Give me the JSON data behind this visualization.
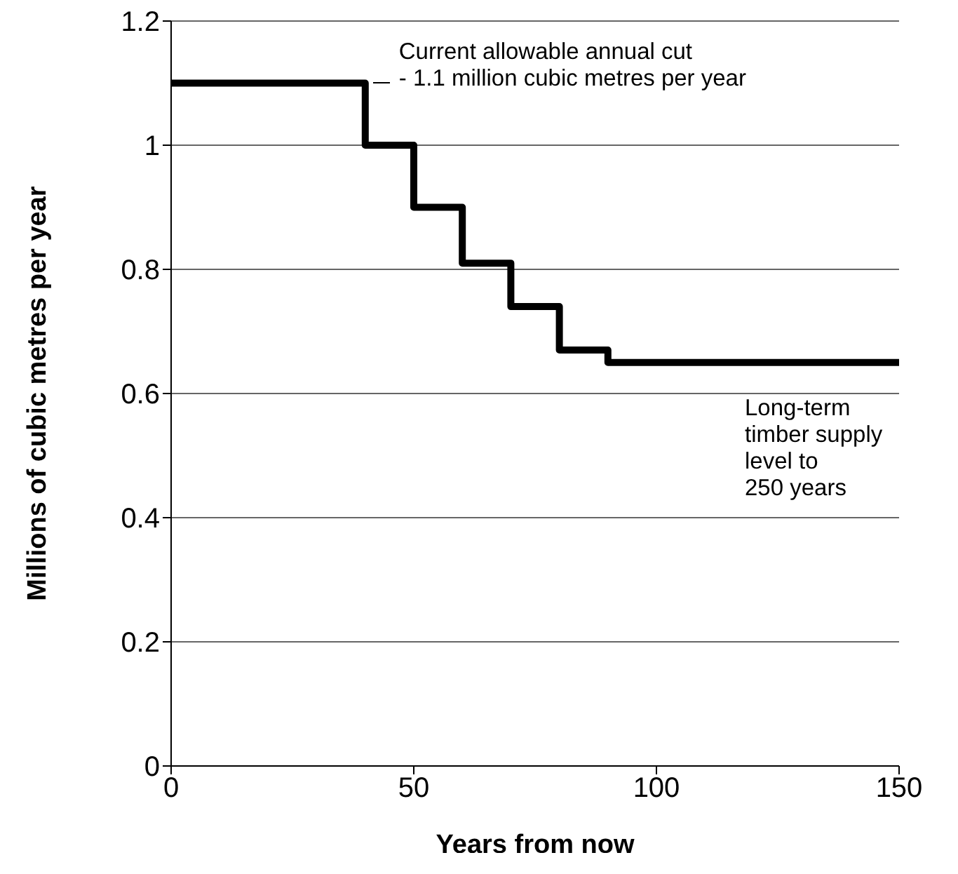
{
  "chart_data": {
    "type": "step",
    "xlabel": "Years from now",
    "ylabel": "Millions of cubic metres per year",
    "x": [
      0,
      40,
      50,
      60,
      70,
      80,
      90,
      150
    ],
    "values": [
      1.1,
      1.0,
      0.9,
      0.81,
      0.74,
      0.67,
      0.65,
      0.65
    ],
    "color": "#000000",
    "xlim": [
      0,
      150
    ],
    "xticks": [
      0,
      50,
      100,
      150
    ],
    "ylim": [
      0,
      1.2
    ],
    "yticks": [
      0,
      0.2,
      0.4,
      0.6,
      0.8,
      1,
      1.2
    ],
    "grid": "y",
    "marker": "none",
    "line_style": "solid",
    "annotations": [
      "Current allowable annual cut\n- 1.1 million cubic metres per year",
      "Long-term\ntimber supply\nlevel to\n250 years"
    ]
  }
}
